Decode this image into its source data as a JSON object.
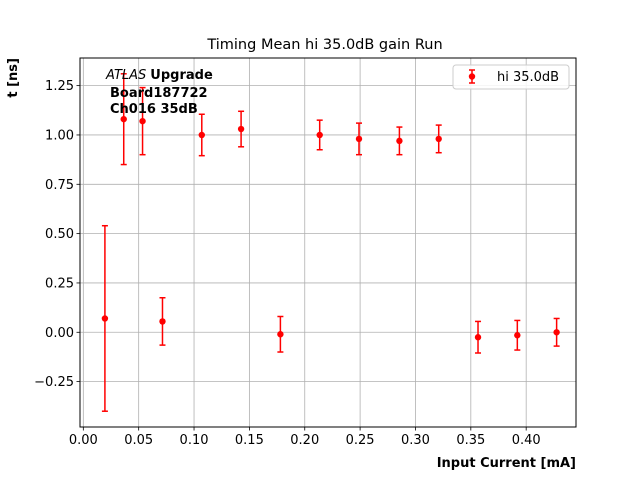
{
  "chart_data": {
    "type": "scatter",
    "title": "Timing Mean hi 35.0dB gain Run",
    "xlabel": "Input Current [mA]",
    "ylabel": "t [ns]",
    "xlim": [
      -0.003,
      0.445
    ],
    "ylim": [
      -0.48,
      1.39
    ],
    "xticks": [
      "0.00",
      "0.05",
      "0.10",
      "0.15",
      "0.20",
      "0.25",
      "0.30",
      "0.35",
      "0.40"
    ],
    "yticks": [
      "-0.25",
      "0.00",
      "0.25",
      "0.50",
      "0.75",
      "1.00",
      "1.25"
    ],
    "grid": true,
    "legend_position": "top-right",
    "annotation": {
      "italic": "ATLAS",
      "bold": "Upgrade",
      "line2": "Board187722",
      "line3": "Ch016 35dB"
    },
    "series": [
      {
        "name": "hi 35.0dB",
        "color": "#ff0000",
        "marker": "circle",
        "points": [
          {
            "x": 0.0195,
            "y": 0.07,
            "err": 0.47
          },
          {
            "x": 0.0365,
            "y": 1.08,
            "err": 0.23
          },
          {
            "x": 0.0535,
            "y": 1.07,
            "err": 0.17
          },
          {
            "x": 0.0715,
            "y": 0.055,
            "err": 0.12
          },
          {
            "x": 0.107,
            "y": 1.0,
            "err": 0.105
          },
          {
            "x": 0.1425,
            "y": 1.03,
            "err": 0.09
          },
          {
            "x": 0.178,
            "y": -0.01,
            "err": 0.09
          },
          {
            "x": 0.2135,
            "y": 1.0,
            "err": 0.075
          },
          {
            "x": 0.249,
            "y": 0.98,
            "err": 0.08
          },
          {
            "x": 0.2855,
            "y": 0.97,
            "err": 0.07
          },
          {
            "x": 0.321,
            "y": 0.98,
            "err": 0.07
          },
          {
            "x": 0.3565,
            "y": -0.025,
            "err": 0.08
          },
          {
            "x": 0.392,
            "y": -0.015,
            "err": 0.075
          },
          {
            "x": 0.4275,
            "y": 0.0,
            "err": 0.07
          }
        ]
      }
    ]
  }
}
